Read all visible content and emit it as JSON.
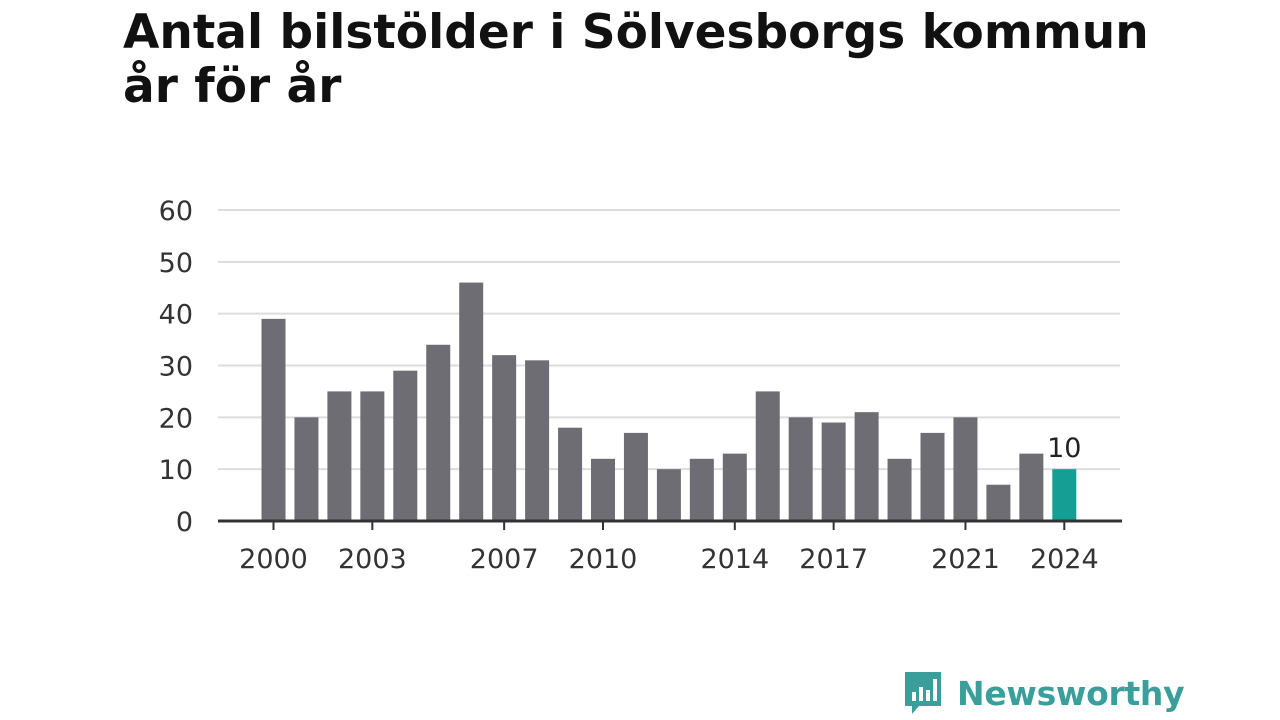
{
  "title": {
    "line1": "Antal bilstölder i Sölvesborgs kommun",
    "line2": "år för år"
  },
  "brand": {
    "name": "Newsworthy",
    "logo_icon": "newsworthy-bar-chart-speech-bubble-icon"
  },
  "colors": {
    "bar": "#6e6d74",
    "highlight": "#149e94",
    "grid": "#dddddd",
    "axis": "#333333",
    "brand": "#3a9f9b"
  },
  "chart_data": {
    "type": "bar",
    "title": "Antal bilstölder i Sölvesborgs kommun år för år",
    "xlabel": "",
    "ylabel": "",
    "categories": [
      2000,
      2001,
      2002,
      2003,
      2004,
      2005,
      2006,
      2007,
      2008,
      2009,
      2010,
      2011,
      2012,
      2013,
      2014,
      2015,
      2016,
      2017,
      2018,
      2019,
      2020,
      2021,
      2022,
      2023,
      2024
    ],
    "values": [
      39,
      20,
      25,
      25,
      29,
      34,
      46,
      32,
      31,
      18,
      12,
      17,
      10,
      12,
      13,
      25,
      20,
      19,
      21,
      12,
      17,
      20,
      7,
      13,
      10
    ],
    "x_tick_labels": [
      "2000",
      "2003",
      "2007",
      "2010",
      "2014",
      "2017",
      "2021",
      "2024"
    ],
    "y_ticks": [
      0,
      10,
      20,
      30,
      40,
      50,
      60
    ],
    "ylim": [
      0,
      60
    ],
    "grid": true,
    "highlight": {
      "category": 2024,
      "label": "10"
    }
  }
}
